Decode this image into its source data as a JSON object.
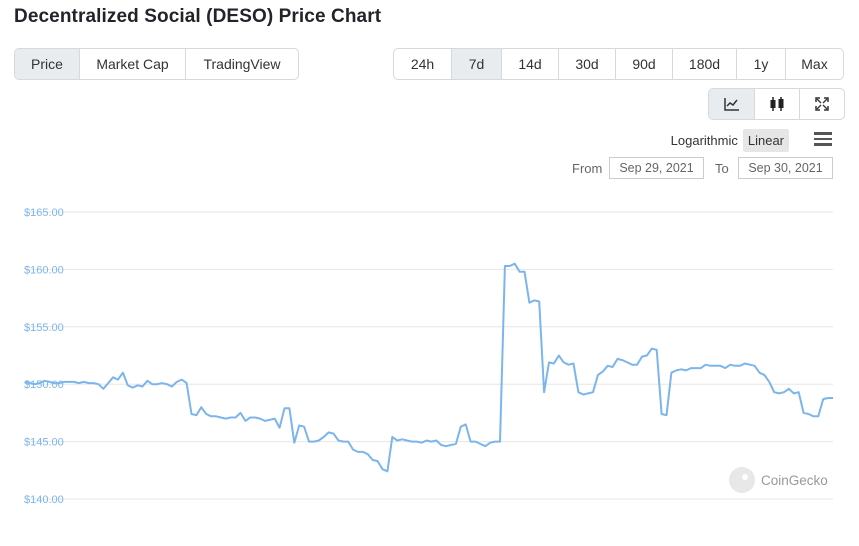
{
  "title": "Decentralized Social (DESO) Price Chart",
  "view_tabs": [
    {
      "label": "Price",
      "active": true
    },
    {
      "label": "Market Cap",
      "active": false
    },
    {
      "label": "TradingView",
      "active": false
    }
  ],
  "range_tabs": [
    {
      "label": "24h",
      "active": false
    },
    {
      "label": "7d",
      "active": true
    },
    {
      "label": "14d",
      "active": false
    },
    {
      "label": "30d",
      "active": false
    },
    {
      "label": "90d",
      "active": false
    },
    {
      "label": "180d",
      "active": false
    },
    {
      "label": "1y",
      "active": false
    },
    {
      "label": "Max",
      "active": false
    }
  ],
  "chart_type_buttons": [
    {
      "icon": "line-chart-icon",
      "active": true
    },
    {
      "icon": "candlestick-icon",
      "active": false
    },
    {
      "icon": "expand-icon",
      "active": false
    }
  ],
  "scale": {
    "logarithmic": "Logarithmic",
    "linear": "Linear",
    "active": "Linear"
  },
  "date_range": {
    "from_label": "From",
    "from": "Sep 29, 2021",
    "to_label": "To",
    "to": "Sep 30, 2021"
  },
  "watermark": "CoinGecko",
  "colors": {
    "line": "#7cb5ec",
    "accent_active": "#e9ecef"
  },
  "chart_data": {
    "type": "line",
    "title": "",
    "xlabel": "",
    "ylabel": "",
    "ylim": [
      140,
      165
    ],
    "y_ticks": [
      {
        "value": 165,
        "label": "$165.00"
      },
      {
        "value": 160,
        "label": "$160.00"
      },
      {
        "value": 155,
        "label": "$155.00"
      },
      {
        "value": 150,
        "label": "$150.00"
      },
      {
        "value": 145,
        "label": "$145.00"
      },
      {
        "value": 140,
        "label": "$140.00"
      }
    ],
    "grid": true,
    "legend": "none",
    "series": [
      {
        "values": [
          150.2,
          150.1,
          150.0,
          150.1,
          150.3,
          150.2,
          150.1,
          150.1,
          150.2,
          150.2,
          150.2,
          150.1,
          150.2,
          150.1,
          150.1,
          150.0,
          149.6,
          150.1,
          150.6,
          150.4,
          151.0,
          149.9,
          149.7,
          149.9,
          149.8,
          150.3,
          150.0,
          150.0,
          150.1,
          150.0,
          149.8,
          150.2,
          150.4,
          150.1,
          147.4,
          147.3,
          148.0,
          147.4,
          147.2,
          147.2,
          147.1,
          147.0,
          147.1,
          147.1,
          147.5,
          146.8,
          147.1,
          147.1,
          147.0,
          146.8,
          146.9,
          147.0,
          146.2,
          147.9,
          147.9,
          144.9,
          146.4,
          146.3,
          145.0,
          145.0,
          145.1,
          145.4,
          145.8,
          145.7,
          145.1,
          145.0,
          145.0,
          144.3,
          144.1,
          144.1,
          143.9,
          143.4,
          143.3,
          142.6,
          142.4,
          145.4,
          145.1,
          145.2,
          145.1,
          145.0,
          145.0,
          144.9,
          145.1,
          145.0,
          145.1,
          144.7,
          144.6,
          144.7,
          144.8,
          146.3,
          146.5,
          145.0,
          145.0,
          144.8,
          144.6,
          144.9,
          145.0,
          145.0,
          160.3,
          160.3,
          160.5,
          159.8,
          159.8,
          157.1,
          157.3,
          157.2,
          149.3,
          151.9,
          151.8,
          152.5,
          151.9,
          151.7,
          151.8,
          149.3,
          149.1,
          149.2,
          149.3,
          150.8,
          151.1,
          151.6,
          151.5,
          152.2,
          152.1,
          151.9,
          151.7,
          151.7,
          152.4,
          152.5,
          153.1,
          153.0,
          147.4,
          147.3,
          151.0,
          151.2,
          151.3,
          151.2,
          151.4,
          151.4,
          151.4,
          151.7,
          151.6,
          151.6,
          151.6,
          151.4,
          151.7,
          151.6,
          151.6,
          151.8,
          151.7,
          151.6,
          151.0,
          150.8,
          150.2,
          149.3,
          149.2,
          149.3,
          149.6,
          149.2,
          149.3,
          147.5,
          147.4,
          147.2,
          147.2,
          148.7,
          148.8,
          148.8
        ]
      }
    ]
  }
}
